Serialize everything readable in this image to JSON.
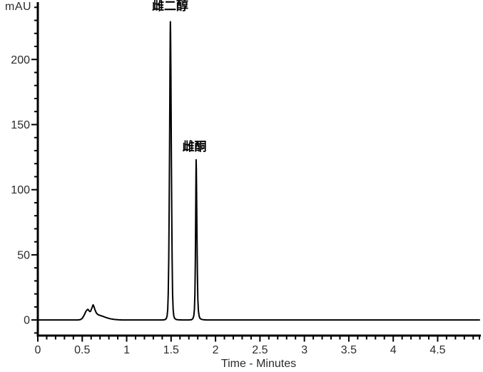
{
  "chart_data": {
    "type": "line",
    "title": "",
    "xlabel": "Time - Minutes",
    "ylabel": "mAU",
    "xlim": [
      0,
      4.97
    ],
    "ylim": [
      -12,
      244
    ],
    "grid": false,
    "background_color": "#ffffff",
    "axis_color": "#000000",
    "trace_color": "#000000",
    "x_ticks": {
      "major": [
        0,
        0.5,
        1,
        1.5,
        2,
        2.5,
        3,
        3.5,
        4,
        4.5
      ],
      "labels": [
        "0",
        "0.5",
        "1",
        "1.5",
        "2",
        "2.5",
        "3",
        "3.5",
        "4",
        "4.5"
      ],
      "minor_step": 0.1,
      "minor_min": 0,
      "minor_max": 4.9,
      "end_tick": 4.97
    },
    "y_ticks": {
      "major": [
        0,
        50,
        100,
        150,
        200
      ],
      "labels": [
        "0",
        "50",
        "100",
        "150",
        "200"
      ],
      "minor_step": 10,
      "minor_min": -10,
      "minor_max": 240
    },
    "annotations": [
      {
        "text": "雌二醇",
        "x": 1.49,
        "y": 238
      },
      {
        "text": "雌酮",
        "x": 1.763,
        "y": 130
      }
    ],
    "peaks": [
      {
        "label": "雌二醇",
        "retention_time_min": 1.49,
        "height_mAU": 229
      },
      {
        "label": "雌酮",
        "retention_time_min": 1.78,
        "height_mAU": 123
      }
    ],
    "series": [
      {
        "name": "signal",
        "points": [
          [
            0,
            0
          ],
          [
            0.45,
            0
          ],
          [
            0.48,
            0.3
          ],
          [
            0.5,
            1.2
          ],
          [
            0.52,
            3.5
          ],
          [
            0.54,
            6.5
          ],
          [
            0.555,
            7.8
          ],
          [
            0.565,
            8.1
          ],
          [
            0.575,
            7.2
          ],
          [
            0.585,
            6.4
          ],
          [
            0.595,
            6.8
          ],
          [
            0.61,
            9.5
          ],
          [
            0.622,
            11.6
          ],
          [
            0.632,
            10.2
          ],
          [
            0.645,
            7.5
          ],
          [
            0.66,
            5.2
          ],
          [
            0.675,
            4.2
          ],
          [
            0.69,
            3.7
          ],
          [
            0.71,
            3.3
          ],
          [
            0.74,
            2.6
          ],
          [
            0.77,
            1.8
          ],
          [
            0.81,
            1.0
          ],
          [
            0.86,
            0.4
          ],
          [
            0.91,
            0.1
          ],
          [
            0.95,
            0
          ],
          [
            1.4,
            0
          ],
          [
            1.43,
            0.2
          ],
          [
            1.445,
            1
          ],
          [
            1.455,
            3
          ],
          [
            1.462,
            8
          ],
          [
            1.468,
            20
          ],
          [
            1.473,
            45
          ],
          [
            1.478,
            85
          ],
          [
            1.483,
            135
          ],
          [
            1.487,
            185
          ],
          [
            1.49,
            220
          ],
          [
            1.492,
            229
          ],
          [
            1.494,
            220
          ],
          [
            1.498,
            185
          ],
          [
            1.502,
            135
          ],
          [
            1.507,
            85
          ],
          [
            1.512,
            45
          ],
          [
            1.517,
            20
          ],
          [
            1.523,
            8
          ],
          [
            1.53,
            3
          ],
          [
            1.54,
            1.2
          ],
          [
            1.555,
            0.4
          ],
          [
            1.58,
            0.1
          ],
          [
            1.62,
            0
          ],
          [
            1.7,
            0
          ],
          [
            1.73,
            0.2
          ],
          [
            1.745,
            1
          ],
          [
            1.755,
            3
          ],
          [
            1.762,
            8
          ],
          [
            1.768,
            20
          ],
          [
            1.773,
            45
          ],
          [
            1.777,
            80
          ],
          [
            1.78,
            110
          ],
          [
            1.782,
            123
          ],
          [
            1.784,
            116
          ],
          [
            1.787,
            95
          ],
          [
            1.791,
            65
          ],
          [
            1.796,
            35
          ],
          [
            1.801,
            16
          ],
          [
            1.807,
            7
          ],
          [
            1.815,
            3
          ],
          [
            1.825,
            1.2
          ],
          [
            1.84,
            0.5
          ],
          [
            1.86,
            0.2
          ],
          [
            1.9,
            0
          ],
          [
            2.5,
            0
          ],
          [
            3.0,
            0
          ],
          [
            3.5,
            0
          ],
          [
            4.0,
            0
          ],
          [
            4.5,
            0
          ],
          [
            4.97,
            0
          ]
        ]
      }
    ]
  }
}
